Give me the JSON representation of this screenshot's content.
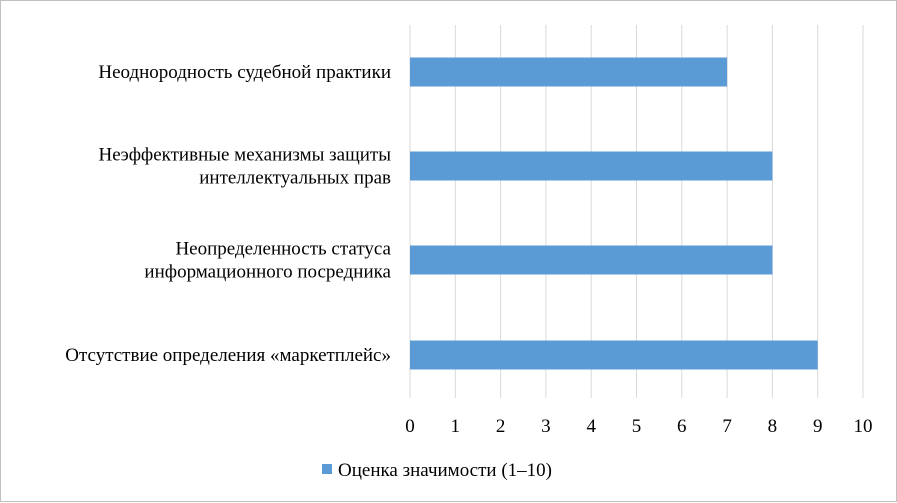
{
  "chart_data": {
    "type": "bar",
    "orientation": "horizontal",
    "categories": [
      [
        "Неоднородность судебной практики"
      ],
      [
        "Неэффективные механизмы защиты",
        "интеллектуальных прав"
      ],
      [
        "Неопределенность статуса",
        "информационного посредника"
      ],
      [
        "Отсутствие определения «маркетплейс»"
      ]
    ],
    "series": [
      {
        "name": "Оценка значимости (1–10)",
        "values": [
          7,
          8,
          8,
          9
        ],
        "color": "#5b9bd5"
      }
    ],
    "xlim": [
      0,
      10
    ],
    "xticks": [
      "0",
      "1",
      "2",
      "3",
      "4",
      "5",
      "6",
      "7",
      "8",
      "9",
      "10"
    ],
    "grid": "vertical",
    "legend": "bottom"
  }
}
